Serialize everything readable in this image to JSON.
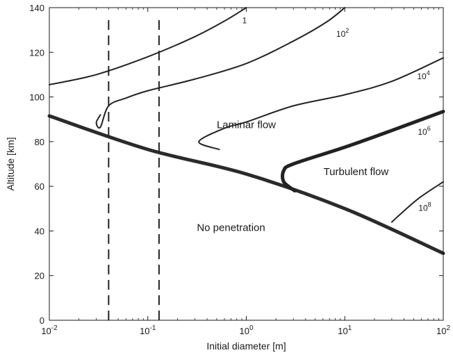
{
  "chart_data": {
    "type": "line",
    "xlabel": "Initial diameter [m]",
    "ylabel": "Altitude [km]",
    "xscale": "log",
    "xlim": [
      0.01,
      100
    ],
    "ylim": [
      0,
      140
    ],
    "grid": false,
    "legend": "none",
    "x_ticks": [
      {
        "value": 0.01,
        "base": "10",
        "exp": "-2"
      },
      {
        "value": 0.1,
        "base": "10",
        "exp": "-1"
      },
      {
        "value": 1,
        "base": "10",
        "exp": "0"
      },
      {
        "value": 10,
        "base": "10",
        "exp": "1"
      },
      {
        "value": 100,
        "base": "10",
        "exp": "2"
      }
    ],
    "y_ticks": [
      0,
      20,
      40,
      60,
      80,
      100,
      120,
      140
    ],
    "colors": {
      "curve": "#222222",
      "boundary": "#2b2b2b",
      "axis": "#1a1a1a"
    },
    "series": [
      {
        "kind": "boundary",
        "points": [
          [
            0.01,
            91.5
          ],
          [
            0.1,
            76.5
          ],
          [
            1,
            65.5
          ],
          [
            10,
            50
          ],
          [
            100,
            30
          ]
        ]
      },
      {
        "kind": "contour",
        "label": {
          "base": "",
          "exp": "",
          "text": "1",
          "at": [
            0.96,
            133
          ]
        },
        "points": [
          [
            0.01,
            105.5
          ],
          [
            0.03,
            110
          ],
          [
            0.1,
            118
          ],
          [
            0.3,
            127
          ],
          [
            0.6,
            134
          ],
          [
            1.0,
            140
          ]
        ]
      },
      {
        "kind": "contour",
        "label": {
          "base": "10",
          "exp": "2",
          "text": "",
          "at": [
            9.5,
            127
          ]
        },
        "points": [
          [
            0.033,
            92
          ],
          [
            0.03,
            88.5
          ],
          [
            0.033,
            86.5
          ],
          [
            0.04,
            96
          ],
          [
            0.06,
            99.5
          ],
          [
            0.1,
            102.8
          ],
          [
            0.3,
            108
          ],
          [
            1,
            115
          ],
          [
            3,
            125
          ],
          [
            6.5,
            133.5
          ],
          [
            10,
            140
          ]
        ]
      },
      {
        "kind": "contour",
        "label": {
          "base": "10",
          "exp": "4",
          "text": "",
          "at": [
            63,
            108
          ]
        },
        "points": [
          [
            0.53,
            76.5
          ],
          [
            0.33,
            80
          ],
          [
            0.6,
            86
          ],
          [
            1,
            88.8
          ],
          [
            3,
            96
          ],
          [
            10,
            101
          ],
          [
            30,
            107
          ],
          [
            100,
            117.5
          ]
        ]
      },
      {
        "kind": "contour-thick",
        "label": {
          "base": "10",
          "exp": "6",
          "text": "",
          "at": [
            64,
            83
          ]
        },
        "points": [
          [
            3.1,
            58
          ],
          [
            2.4,
            62
          ],
          [
            2.4,
            67
          ],
          [
            3,
            70
          ],
          [
            10,
            77.5
          ],
          [
            30,
            85
          ],
          [
            100,
            93.5
          ]
        ]
      },
      {
        "kind": "contour",
        "label": {
          "base": "10",
          "exp": "8",
          "text": "",
          "at": [
            65,
            49
          ]
        },
        "points": [
          [
            30,
            44
          ],
          [
            45,
            51
          ],
          [
            60,
            55.5
          ],
          [
            100,
            62
          ]
        ]
      },
      {
        "kind": "dashed",
        "points": [
          [
            0.04,
            0
          ],
          [
            0.04,
            135
          ]
        ]
      },
      {
        "kind": "dashed",
        "points": [
          [
            0.13,
            0
          ],
          [
            0.13,
            135
          ]
        ]
      }
    ],
    "annotations": [
      {
        "text": "Laminar flow",
        "at": [
          1.0,
          86
        ]
      },
      {
        "text": "Turbulent flow",
        "at": [
          13,
          65
        ]
      },
      {
        "text": "No penetration",
        "at": [
          0.7,
          40
        ]
      }
    ]
  }
}
